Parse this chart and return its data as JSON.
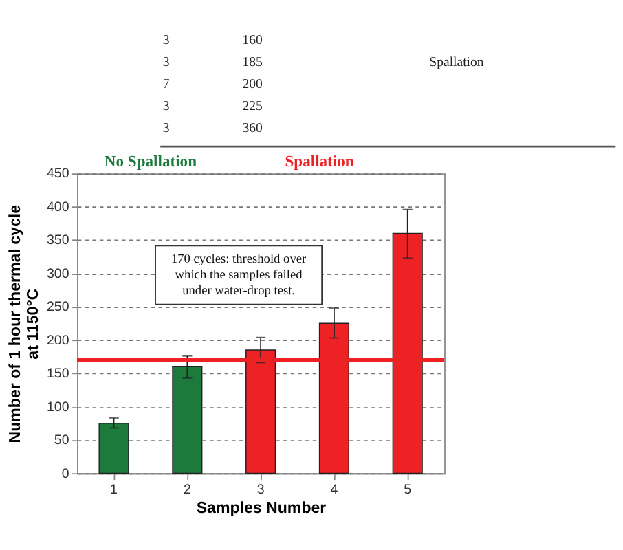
{
  "chart_data": {
    "type": "bar",
    "categories": [
      "1",
      "2",
      "3",
      "4",
      "5"
    ],
    "values": [
      75,
      160,
      185,
      225,
      360
    ],
    "colors": [
      "#1b7a3c",
      "#1b7a3c",
      "#ee2225",
      "#ee2225",
      "#ee2225"
    ],
    "errors": [
      [
        68,
        83
      ],
      [
        143,
        176
      ],
      [
        166,
        204
      ],
      [
        203,
        248
      ],
      [
        323,
        396
      ]
    ],
    "xlabel": "Samples Number",
    "ylabel": "Number of 1 hour thermal cycle\nat 1150°C",
    "ylim": [
      0,
      450
    ],
    "yticks": [
      0,
      50,
      100,
      150,
      200,
      250,
      300,
      350,
      400,
      450
    ],
    "grid": "y",
    "ref_lines": [
      {
        "axis": "y",
        "value": 170,
        "color": "#ee2225"
      }
    ],
    "annotations": [
      "3 160",
      "3 185",
      "7 200",
      "3 225",
      "3 360",
      "Spallation",
      "No Spallation",
      "Spallation",
      "170 cycles: threshold over which the samples failed under water-drop test."
    ]
  }
}
